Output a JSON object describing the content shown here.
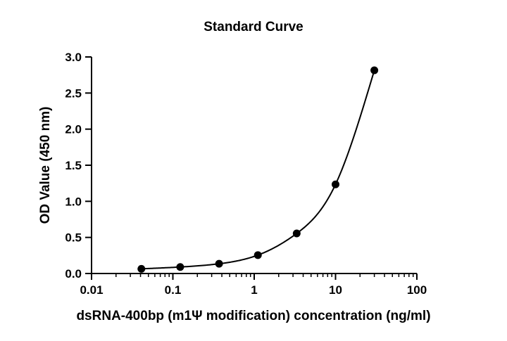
{
  "chart_data": {
    "type": "scatter",
    "title": "Standard Curve",
    "xlabel": "dsRNA-400bp (m1Ψ modification) concentration (ng/ml)",
    "ylabel": "OD Value (450 nm)",
    "xscale": "log",
    "xlim": [
      0.01,
      100
    ],
    "ylim": [
      0,
      3.0
    ],
    "x_ticks": [
      "0.01",
      "0.1",
      "1",
      "10",
      "100"
    ],
    "y_ticks": [
      "0.0",
      "0.5",
      "1.0",
      "1.5",
      "2.0",
      "2.5",
      "3.0"
    ],
    "grid": false,
    "legend": "none",
    "fit": "curve",
    "series": [
      {
        "x": [
          0.041,
          0.123,
          0.37,
          1.11,
          3.33,
          10,
          30
        ],
        "y": [
          0.065,
          0.09,
          0.135,
          0.255,
          0.555,
          1.235,
          2.815
        ]
      }
    ],
    "colors": {
      "marker": "#000000",
      "line": "#000000"
    }
  }
}
